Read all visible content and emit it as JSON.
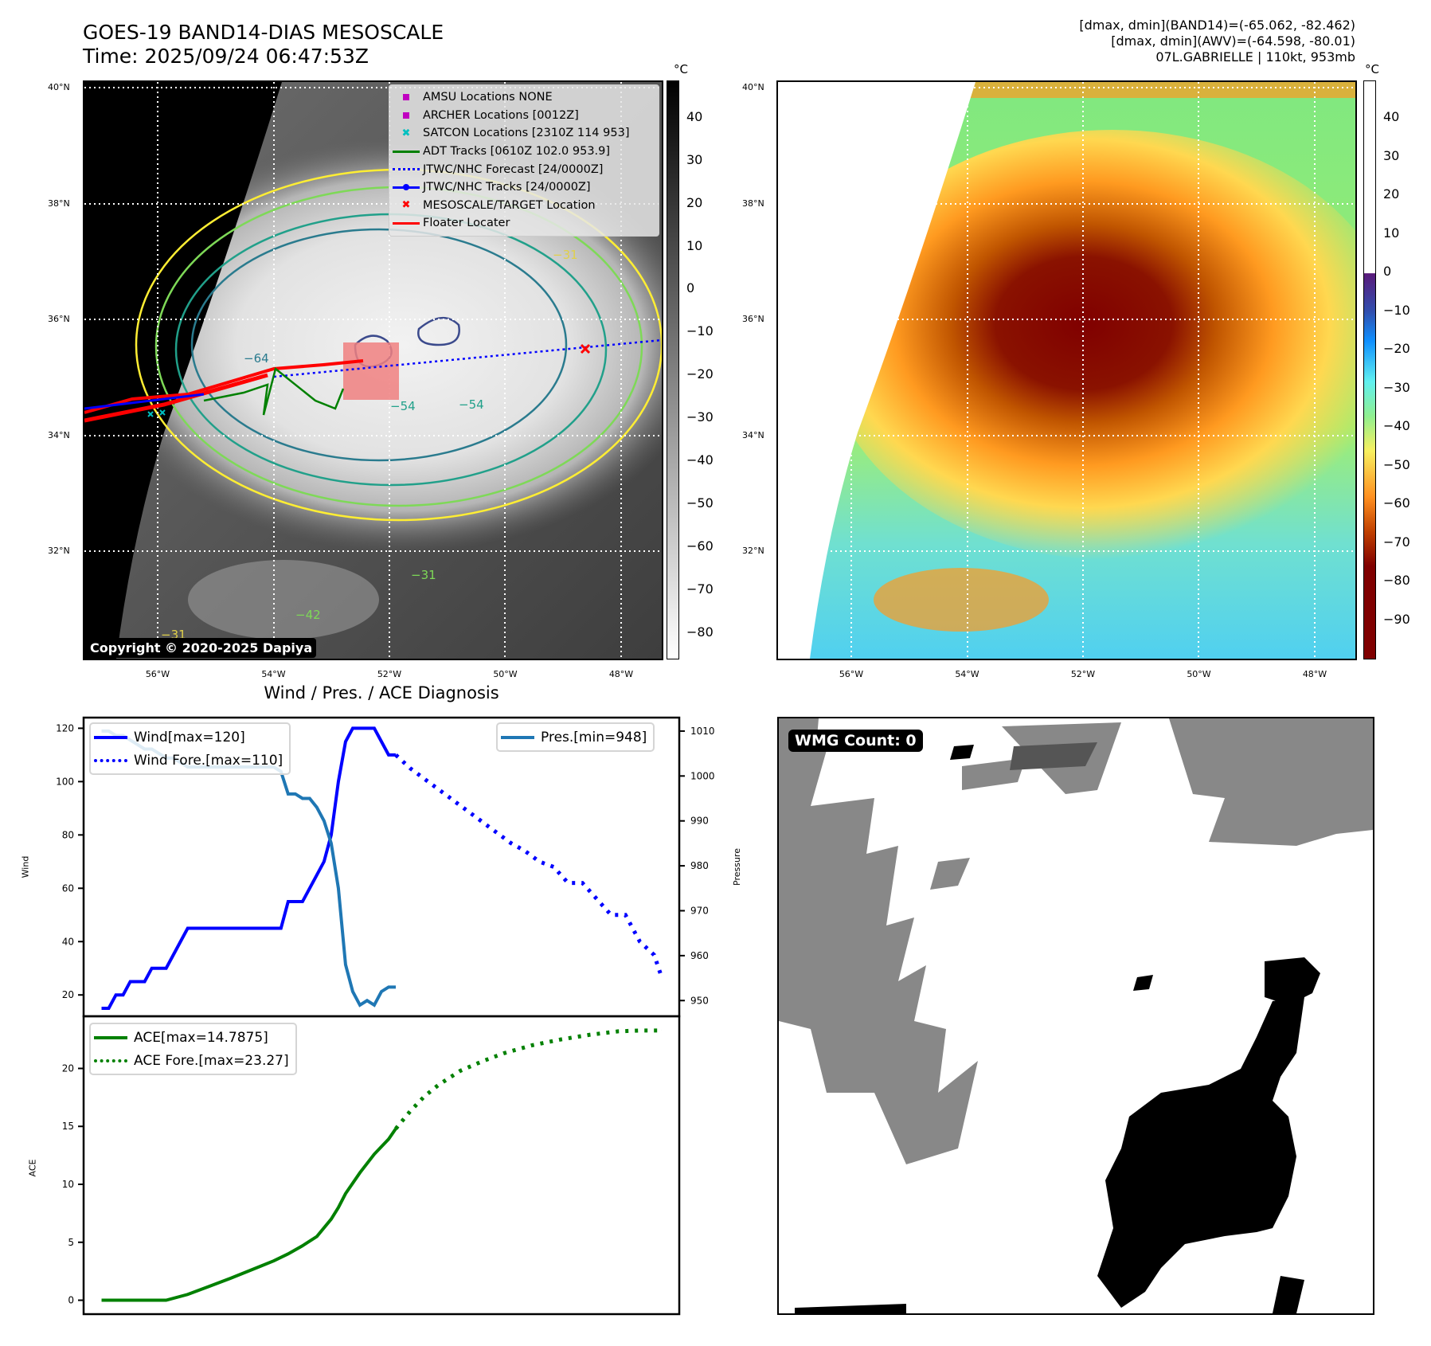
{
  "header": {
    "title_line1": "GOES-19 BAND14-DIAS MESOSCALE",
    "title_line2": "Time: 2025/09/24 06:47:53Z",
    "info_line1": "[dmax, dmin](BAND14)=(-65.062, -82.462)",
    "info_line2": "[dmax, dmin](AWV)=(-64.598, -80.01)",
    "info_line3": "07L.GABRIELLE | 110kt, 953mb"
  },
  "left_map": {
    "lat_ticks": [
      "40°N",
      "38°N",
      "36°N",
      "34°N",
      "32°N"
    ],
    "lon_ticks": [
      "56°W",
      "54°W",
      "52°W",
      "50°W",
      "48°W"
    ],
    "colorbar_unit": "°C",
    "colorbar_ticks": [
      "40",
      "30",
      "20",
      "10",
      "0",
      "−10",
      "−20",
      "−30",
      "−40",
      "−50",
      "−60",
      "−70",
      "−80"
    ],
    "contour_labels": [
      "−31",
      "−64",
      "−54",
      "−54",
      "−31",
      "−42",
      "−31"
    ],
    "copyright": "Copyright © 2020-2025 Dapiya",
    "legend": [
      {
        "label": "AMSU Locations NONE",
        "symbol": "square",
        "color": "#c000c0"
      },
      {
        "label": "ARCHER Locations [0012Z]",
        "symbol": "square",
        "color": "#c000c0"
      },
      {
        "label": "SATCON Locations [2310Z 114 953]",
        "symbol": "x",
        "color": "#00c0c0"
      },
      {
        "label": "ADT Tracks [0610Z 102.0 953.9]",
        "symbol": "line",
        "color": "#008000"
      },
      {
        "label": "JTWC/NHC Forecast [24/0000Z]",
        "symbol": "dotted",
        "color": "#0000ff"
      },
      {
        "label": "JTWC/NHC Tracks [24/0000Z]",
        "symbol": "line-dot",
        "color": "#0000ff"
      },
      {
        "label": "MESOSCALE/TARGET Location",
        "symbol": "x",
        "color": "#ff0000"
      },
      {
        "label": "Floater Locater",
        "symbol": "line",
        "color": "#ff0000"
      }
    ]
  },
  "right_map": {
    "lat_ticks": [
      "40°N",
      "38°N",
      "36°N",
      "34°N",
      "32°N"
    ],
    "lon_ticks": [
      "56°W",
      "54°W",
      "52°W",
      "50°W",
      "48°W"
    ],
    "colorbar_unit": "°C",
    "colorbar_ticks": [
      "40",
      "30",
      "20",
      "10",
      "0",
      "−10",
      "−20",
      "−30",
      "−40",
      "−50",
      "−60",
      "−70",
      "−80",
      "−90"
    ]
  },
  "diagnosis_title": "Wind / Pres. / ACE Diagnosis",
  "wmg": {
    "badge": "WMG Count: 0"
  },
  "colors": {
    "wind": "#0000ff",
    "pressure": "#1f77b4",
    "ace": "#008000"
  },
  "chart_data": [
    {
      "type": "line",
      "title": "Wind / Pres. / ACE Diagnosis",
      "ylabel": "Wind",
      "y2label": "Pressure",
      "ylim": [
        12,
        124
      ],
      "y2lim": [
        946.5,
        1013
      ],
      "yticks": [
        "20",
        "40",
        "60",
        "80",
        "100",
        "120"
      ],
      "y2ticks": [
        "950",
        "960",
        "970",
        "980",
        "990",
        "1000",
        "1010"
      ],
      "x": [
        0,
        1,
        2,
        3,
        4,
        5,
        6,
        7,
        8,
        9,
        10,
        11,
        12,
        13,
        14,
        15,
        16,
        17,
        18,
        19,
        20,
        21,
        22,
        23,
        24,
        25,
        26,
        27,
        28,
        29,
        30,
        31,
        32,
        33,
        34,
        35,
        36,
        37,
        38,
        39,
        40,
        41,
        42,
        43,
        44,
        45,
        46,
        47,
        48,
        49,
        50,
        51,
        52,
        53,
        54,
        55,
        56,
        57,
        58,
        59,
        60,
        61,
        62,
        63,
        64,
        65,
        66,
        67,
        68,
        69,
        70,
        71,
        72,
        73,
        74,
        75,
        76,
        77,
        78
      ],
      "series": [
        {
          "name": "Wind",
          "legend": "Wind[max=120]",
          "style": "solid",
          "x": [
            0,
            1,
            2,
            3,
            4,
            5,
            6,
            7,
            8,
            9,
            10,
            11,
            12,
            13,
            14,
            15,
            16,
            17,
            18,
            19,
            20,
            21,
            22,
            23,
            24,
            25,
            26,
            27,
            28,
            29,
            30,
            31,
            32,
            33,
            34,
            35,
            36,
            37,
            38,
            39,
            40,
            41
          ],
          "values": [
            15,
            15,
            20,
            20,
            25,
            25,
            25,
            30,
            30,
            30,
            35,
            40,
            45,
            45,
            45,
            45,
            45,
            45,
            45,
            45,
            45,
            45,
            45,
            45,
            45,
            45,
            55,
            55,
            55,
            60,
            65,
            70,
            80,
            100,
            115,
            120,
            120,
            120,
            120,
            115,
            110,
            110
          ]
        },
        {
          "name": "Wind Fore.",
          "legend": "Wind Fore.[max=110]",
          "style": "dotted",
          "x": [
            41,
            43,
            45,
            47,
            49,
            51,
            53,
            55,
            57,
            59,
            61,
            63,
            65,
            67,
            69,
            71,
            73,
            75,
            77,
            78
          ],
          "values": [
            110,
            105,
            101,
            97,
            93,
            89,
            85,
            81,
            77,
            74,
            70,
            68,
            62,
            62,
            56,
            50,
            50,
            40,
            35,
            27
          ]
        },
        {
          "name": "Pres.",
          "legend": "Pres.[min=948]",
          "style": "solid",
          "axis": "right",
          "x": [
            0,
            1,
            2,
            3,
            4,
            5,
            6,
            7,
            8,
            9,
            10,
            11,
            12,
            13,
            14,
            15,
            16,
            17,
            18,
            19,
            20,
            21,
            22,
            23,
            24,
            25,
            26,
            27,
            28,
            29,
            30,
            31,
            32,
            33,
            34,
            35,
            36,
            37,
            38,
            39,
            40,
            41
          ],
          "values": [
            1010,
            1010,
            1009,
            1009,
            1008,
            1007,
            1006,
            1006,
            1005,
            1004,
            1004,
            1003,
            1002,
            1002,
            1002,
            1002,
            1002,
            1002,
            1002,
            1002,
            1002,
            1002,
            1002,
            1002,
            1002,
            1001,
            996,
            996,
            995,
            995,
            993,
            990,
            985,
            975,
            958,
            952,
            949,
            950,
            949,
            952,
            953,
            953
          ]
        }
      ]
    },
    {
      "type": "line",
      "ylabel": "ACE",
      "ylim": [
        -1.2,
        24.5
      ],
      "yticks": [
        "0",
        "5",
        "10",
        "15",
        "20"
      ],
      "series": [
        {
          "name": "ACE",
          "legend": "ACE[max=14.7875]",
          "style": "solid",
          "x": [
            0,
            3,
            6,
            9,
            12,
            15,
            18,
            20,
            22,
            24,
            26,
            28,
            30,
            32,
            33,
            34,
            36,
            38,
            40,
            41
          ],
          "values": [
            0,
            0,
            0,
            0,
            0.5,
            1.2,
            1.9,
            2.4,
            2.9,
            3.4,
            4.0,
            4.7,
            5.5,
            7.0,
            8.0,
            9.2,
            11.0,
            12.6,
            13.9,
            14.8
          ]
        },
        {
          "name": "ACE Fore.",
          "legend": "ACE Fore.[max=23.27]",
          "style": "dotted",
          "x": [
            41,
            43,
            45,
            47,
            50,
            53,
            56,
            60,
            64,
            68,
            72,
            75,
            78
          ],
          "values": [
            14.8,
            16.3,
            17.6,
            18.6,
            19.8,
            20.6,
            21.3,
            22.0,
            22.5,
            22.9,
            23.2,
            23.27,
            23.27
          ]
        }
      ]
    }
  ]
}
